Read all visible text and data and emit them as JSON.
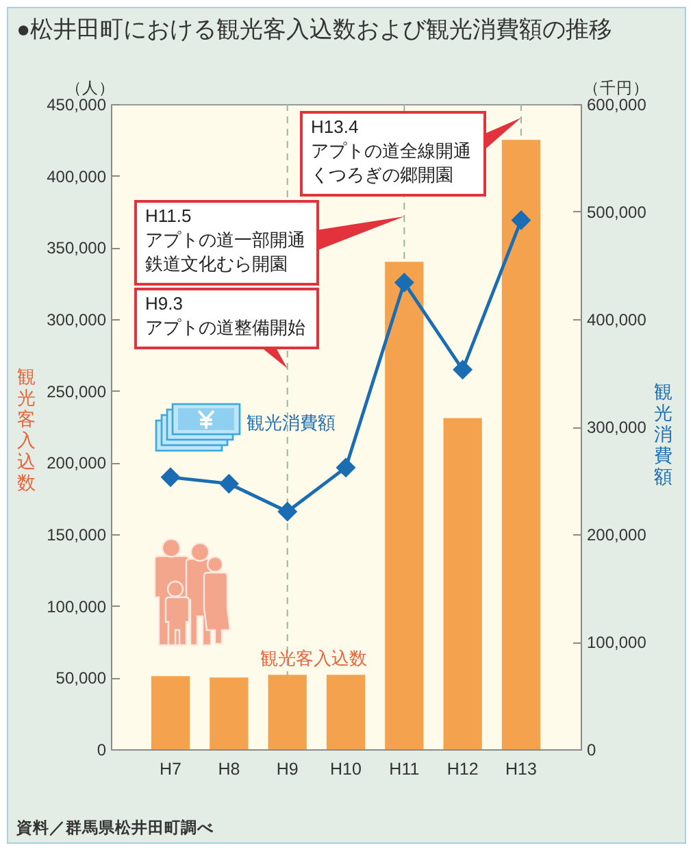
{
  "chart_data": {
    "type": "bar",
    "title": "●松井田町における観光客入込数および観光消費額の推移",
    "categories": [
      "H7",
      "H8",
      "H9",
      "H10",
      "H11",
      "H12",
      "H13"
    ],
    "ylabel": "観光客入込数",
    "y2label": "観光消費額",
    "series": [
      {
        "name": "観光客入込数",
        "color": "#f5a24e",
        "values": [
          51000,
          50000,
          52000,
          52000,
          340000,
          231000,
          425000
        ]
      },
      {
        "name": "観光消費額",
        "type": "line",
        "axis": "y2",
        "color": "#1b6db3",
        "values": [
          253000,
          247000,
          221000,
          262000,
          434000,
          353000,
          492000
        ]
      }
    ],
    "ylim": [
      0,
      450000
    ],
    "yticks": [
      0,
      {
        "value": 50000,
        "label": "50,000"
      },
      {
        "value": 100000,
        "label": "100,000"
      },
      {
        "value": 150000,
        "label": "150,000"
      },
      {
        "value": 200000,
        "label": "200,000"
      },
      {
        "value": 250000,
        "label": "250,000"
      },
      {
        "value": 300000,
        "label": "300,000"
      },
      {
        "value": 350000,
        "label": "350,000"
      },
      {
        "value": 400000,
        "label": "400,000"
      },
      {
        "value": 450000,
        "label": "450,000"
      }
    ],
    "y2lim": [
      0,
      600000
    ],
    "y2ticks": [
      0,
      {
        "value": 100000,
        "label": "100,000"
      },
      {
        "value": 200000,
        "label": "200,000"
      },
      {
        "value": 300000,
        "label": "300,000"
      },
      {
        "value": 400000,
        "label": "400,000"
      },
      {
        "value": 500000,
        "label": "500,000"
      },
      {
        "value": 600000,
        "label": "600,000"
      }
    ],
    "marker": "diamond",
    "line_style": "solid",
    "ref_lines": [
      {
        "axis": "x",
        "value": "H9",
        "label": "H9.3 アプトの道整備開始",
        "color": "#98b4a2",
        "line_style": "dashed"
      },
      {
        "axis": "x",
        "value": "H11",
        "label": "H11.5 アプトの道一部開通鉄道文化むら開園",
        "color": "#98b4a2",
        "line_style": "dashed"
      },
      {
        "axis": "x",
        "value": "H13",
        "label": "H13.4 アプトの道全線開通くつろぎの郷開園",
        "color": "#98b4a2",
        "line_style": "dashed"
      }
    ],
    "annotations": [
      "（人）",
      "（千円）",
      "資料／群馬県松井田町調べ"
    ]
  }
}
